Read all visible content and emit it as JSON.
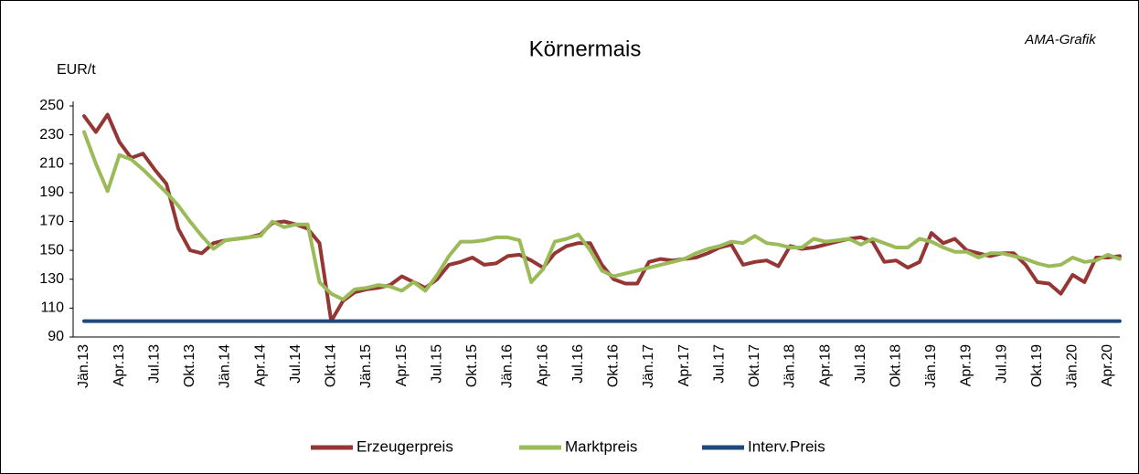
{
  "chart_data": {
    "type": "line",
    "title": "Körnermais",
    "annotation": "AMA-Grafik",
    "y_label": "EUR/t",
    "categories": [
      "Jän.13",
      null,
      null,
      "Apr.13",
      null,
      null,
      "Jul.13",
      null,
      null,
      "Okt.13",
      null,
      null,
      "Jän.14",
      null,
      null,
      "Apr.14",
      null,
      null,
      "Jul.14",
      null,
      null,
      "Okt.14",
      null,
      null,
      "Jän.15",
      null,
      null,
      "Apr.15",
      null,
      null,
      "Jul.15",
      null,
      null,
      "Okt.15",
      null,
      null,
      "Jän.16",
      null,
      null,
      "Apr.16",
      null,
      null,
      "Jul.16",
      null,
      null,
      "Okt.16",
      null,
      null,
      "Jän.17",
      null,
      null,
      "Apr.17",
      null,
      null,
      "Jul.17",
      null,
      null,
      "Okt.17",
      null,
      null,
      "Jän.18",
      null,
      null,
      "Apr.18",
      null,
      null,
      "Jul.18",
      null,
      null,
      "Okt.18",
      null,
      null,
      "Jän.19",
      null,
      null,
      "Apr.19",
      null,
      null,
      "Jul.19",
      null,
      null,
      "Okt.19",
      null,
      null,
      "Jän.20",
      null,
      null,
      "Apr.20",
      null
    ],
    "series": [
      {
        "name": "Erzeugerpreis",
        "color": "#943634",
        "values": [
          243,
          232,
          244,
          225,
          214,
          217,
          206,
          196,
          165,
          150,
          148,
          155,
          157,
          158,
          159,
          161,
          169,
          170,
          168,
          165,
          155,
          101,
          115,
          121,
          123,
          124,
          126,
          132,
          128,
          124,
          130,
          140,
          142,
          145,
          140,
          141,
          146,
          147,
          143,
          138,
          148,
          153,
          155,
          155,
          140,
          130,
          127,
          127,
          142,
          144,
          143,
          144,
          145,
          148,
          152,
          154,
          140,
          142,
          143,
          139,
          153,
          151,
          152,
          154,
          156,
          158,
          159,
          156,
          142,
          143,
          138,
          142,
          162,
          155,
          158,
          150,
          148,
          146,
          148,
          148,
          140,
          128,
          127,
          120,
          133,
          128,
          145,
          145,
          146
        ]
      },
      {
        "name": "Marktpreis",
        "color": "#9bbb59",
        "values": [
          232,
          210,
          191,
          216,
          213,
          206,
          198,
          190,
          181,
          170,
          160,
          151,
          157,
          158,
          159,
          160,
          170,
          166,
          168,
          168,
          128,
          120,
          116,
          123,
          124,
          126,
          125,
          122,
          128,
          122,
          133,
          146,
          156,
          156,
          157,
          159,
          159,
          157,
          128,
          137,
          156,
          158,
          161,
          150,
          136,
          132,
          134,
          136,
          138,
          140,
          142,
          144,
          148,
          151,
          153,
          156,
          155,
          160,
          155,
          154,
          152,
          152,
          158,
          156,
          157,
          158,
          154,
          158,
          155,
          152,
          152,
          158,
          156,
          152,
          149,
          149,
          145,
          148,
          148,
          146,
          144,
          141,
          139,
          140,
          145,
          142,
          143,
          147,
          144
        ]
      },
      {
        "name": "Interv.Preis",
        "color": "#1f497d",
        "values": [
          101,
          101,
          101,
          101,
          101,
          101,
          101,
          101,
          101,
          101,
          101,
          101,
          101,
          101,
          101,
          101,
          101,
          101,
          101,
          101,
          101,
          101,
          101,
          101,
          101,
          101,
          101,
          101,
          101,
          101,
          101,
          101,
          101,
          101,
          101,
          101,
          101,
          101,
          101,
          101,
          101,
          101,
          101,
          101,
          101,
          101,
          101,
          101,
          101,
          101,
          101,
          101,
          101,
          101,
          101,
          101,
          101,
          101,
          101,
          101,
          101,
          101,
          101,
          101,
          101,
          101,
          101,
          101,
          101,
          101,
          101,
          101,
          101,
          101,
          101,
          101,
          101,
          101,
          101,
          101,
          101,
          101,
          101,
          101,
          101,
          101,
          101,
          101,
          101
        ]
      }
    ],
    "ylim": [
      90,
      250
    ],
    "yticks": [
      90,
      110,
      130,
      150,
      170,
      190,
      210,
      230,
      250
    ],
    "grid": false,
    "legend": "bottom"
  }
}
